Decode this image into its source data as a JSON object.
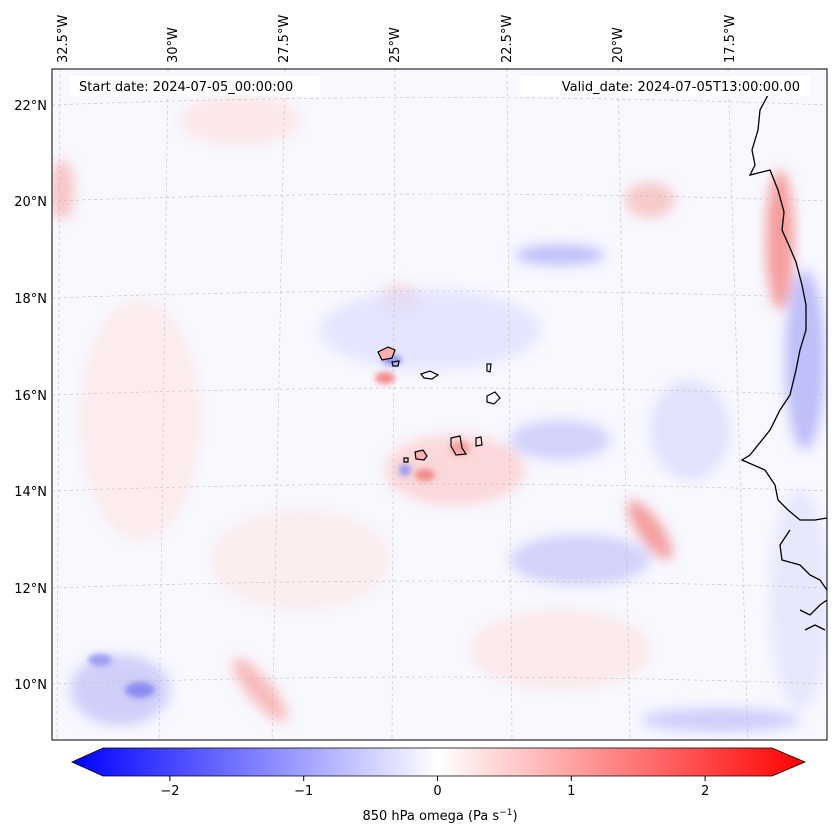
{
  "map": {
    "start_date": "Start date: 2024-07-05_00:00:00",
    "valid_date": "Valid_date: 2024-07-05T13:00:00.00",
    "variable": "850 hPa omega",
    "longitude_labels": [
      "32.5°W",
      "30°W",
      "27.5°W",
      "25°W",
      "22.5°W",
      "20°W",
      "17.5°W"
    ],
    "latitude_labels": [
      "22°N",
      "20°N",
      "18°N",
      "16°N",
      "14°N",
      "12°N",
      "10°N"
    ]
  },
  "colorbar": {
    "label_prefix": "850 hPa omega (Pa s",
    "label_exponent": "−1",
    "label_suffix": ")",
    "ticks": [
      "−2",
      "−1",
      "0",
      "1",
      "2"
    ],
    "tick_values": [
      -2,
      -1,
      0,
      1,
      2
    ],
    "range": [
      -2.75,
      2.75
    ],
    "colors": {
      "negative": "#0000ff",
      "zero": "#ffffff",
      "positive": "#ff0000"
    }
  }
}
